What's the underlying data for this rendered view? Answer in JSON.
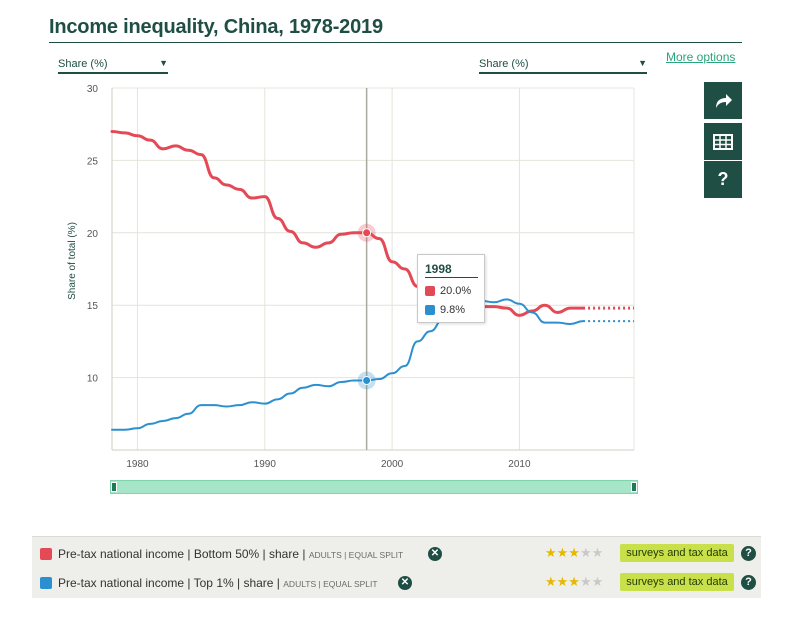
{
  "header": {
    "title": "Income inequality, China, 1978-2019",
    "more_options": "More options"
  },
  "selectors": {
    "left": "Share (%)",
    "right": "Share (%)"
  },
  "icons": {
    "share": "share-arrow-icon",
    "table": "table-icon",
    "help": "question-mark-icon"
  },
  "tooltip": {
    "year": "1998",
    "values": [
      "20.0%",
      "9.8%"
    ]
  },
  "legend": [
    {
      "main": "Pre-tax national income | Bottom 50% | share |",
      "meta": "ADULTS | EQUAL SPLIT",
      "stars": 3,
      "stars_total": 5,
      "source": "surveys and tax data",
      "color": "#e34a56"
    },
    {
      "main": "Pre-tax national income | Top 1% | share |",
      "meta": "ADULTS | EQUAL SPLIT",
      "stars": 3,
      "stars_total": 5,
      "source": "surveys and tax data",
      "color": "#2b8fd0"
    }
  ],
  "chart_data": {
    "type": "line",
    "ylabel": "Share of total (%)",
    "xlabel": "",
    "xlim": [
      1978,
      2019
    ],
    "ylim": [
      5,
      30
    ],
    "yticks": [
      10,
      15,
      20,
      25,
      30
    ],
    "xticks": [
      1980,
      1990,
      2000,
      2010
    ],
    "grid": true,
    "highlight_x": 1998,
    "projection_from": 2015,
    "series": [
      {
        "name": "Pre-tax national income | Bottom 50% | share",
        "color": "#e34a56",
        "x": [
          1978,
          1979,
          1980,
          1981,
          1982,
          1983,
          1984,
          1985,
          1986,
          1987,
          1988,
          1989,
          1990,
          1991,
          1992,
          1993,
          1994,
          1995,
          1996,
          1997,
          1998,
          1999,
          2000,
          2001,
          2002,
          2003,
          2004,
          2005,
          2006,
          2007,
          2008,
          2009,
          2010,
          2011,
          2012,
          2013,
          2014,
          2015
        ],
        "y": [
          27.0,
          26.9,
          26.7,
          26.4,
          25.8,
          26.0,
          25.7,
          25.4,
          23.8,
          23.3,
          23.0,
          22.4,
          22.5,
          21.0,
          20.1,
          19.3,
          19.0,
          19.3,
          19.9,
          20.0,
          20.0,
          19.6,
          18.0,
          17.5,
          16.3,
          15.8,
          15.6,
          15.4,
          15.1,
          14.9,
          14.9,
          14.8,
          14.3,
          14.6,
          15.0,
          14.5,
          14.8,
          14.8
        ]
      },
      {
        "name": "Pre-tax national income | Top 1% | share",
        "color": "#2b8fd0",
        "x": [
          1978,
          1979,
          1980,
          1981,
          1982,
          1983,
          1984,
          1985,
          1986,
          1987,
          1988,
          1989,
          1990,
          1991,
          1992,
          1993,
          1994,
          1995,
          1996,
          1997,
          1998,
          1999,
          2000,
          2001,
          2002,
          2003,
          2004,
          2005,
          2006,
          2007,
          2008,
          2009,
          2010,
          2011,
          2012,
          2013,
          2014,
          2015
        ],
        "y": [
          6.4,
          6.4,
          6.5,
          6.8,
          7.0,
          7.2,
          7.5,
          8.1,
          8.1,
          8.0,
          8.1,
          8.3,
          8.2,
          8.5,
          8.9,
          9.3,
          9.5,
          9.4,
          9.7,
          9.8,
          9.8,
          9.9,
          10.3,
          10.8,
          12.5,
          13.2,
          14.0,
          14.6,
          15.2,
          15.3,
          15.2,
          15.4,
          15.1,
          14.5,
          13.8,
          13.8,
          13.7,
          13.9
        ]
      }
    ],
    "projection_values": [
      14.8,
      13.9
    ]
  }
}
